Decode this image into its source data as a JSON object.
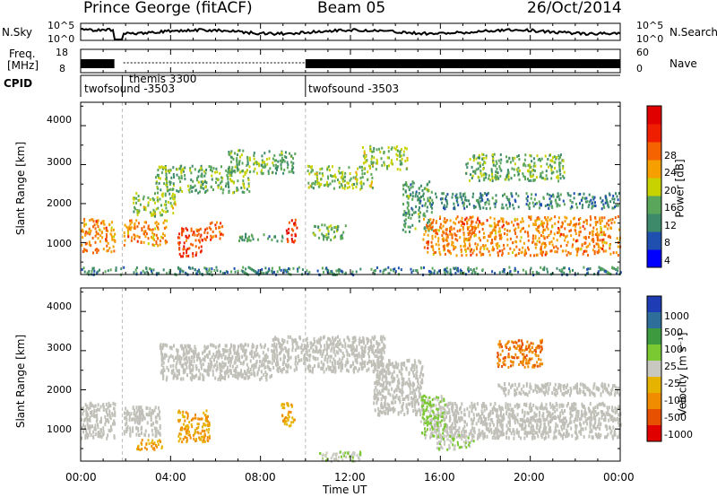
{
  "header": {
    "station": "Prince George (fitACF)",
    "beam": "Beam 05",
    "date": "26/Oct/2014"
  },
  "strip_panels": {
    "nsky": {
      "left_label": "N.Sky",
      "right_label": "N.Search",
      "left_ticks": [
        "10^5",
        "10^0"
      ],
      "right_ticks": [
        "10^5",
        "10^0"
      ]
    },
    "freq": {
      "left_label_1": "Freq.",
      "left_label_2": "[MHz]",
      "right_label": "Nave",
      "left_ticks": [
        "18",
        "8"
      ],
      "right_ticks": [
        "60",
        "0"
      ]
    },
    "cpid": {
      "label": "CPID",
      "segments": [
        {
          "text": "twofsound -3503",
          "start_h": 0.0,
          "end_h": 1.85
        },
        {
          "text": "themis 3300",
          "start_h": 1.85,
          "end_h": 10.0
        },
        {
          "text": "twofsound -3503",
          "start_h": 10.0,
          "end_h": 24.0
        }
      ]
    }
  },
  "power_panel": {
    "ylabel": "Slant Range [km]",
    "yticks": [
      "4000",
      "3000",
      "2000",
      "1000"
    ],
    "colorbar_label": "Power [dB]",
    "colorbar_ticks": [
      "28",
      "24",
      "20",
      "16",
      "12",
      "8",
      "4"
    ]
  },
  "velocity_panel": {
    "ylabel": "Slant Range [km]",
    "yticks": [
      "4000",
      "3000",
      "2000",
      "1000"
    ],
    "colorbar_label": "Velocity [m s⁻¹]",
    "colorbar_ticks": [
      "1000",
      "500",
      "100",
      "25",
      "-25",
      "-100",
      "-500",
      "-1000"
    ]
  },
  "x_axis": {
    "xlabel": "Time UT",
    "xticks": [
      "00:00",
      "04:00",
      "08:00",
      "12:00",
      "16:00",
      "20:00",
      "00:00"
    ]
  },
  "colors": {
    "power_scale": [
      "#0000ff",
      "#1f4faf",
      "#3d8a6a",
      "#5aa65a",
      "#c8d200",
      "#f5a000",
      "#f56200",
      "#f01e00",
      "#e00000"
    ],
    "velocity_scale": [
      "#1e3cb4",
      "#2d6e9a",
      "#3e9a3e",
      "#7ac832",
      "#c8c8c0",
      "#e6b400",
      "#f08c00",
      "#e65000",
      "#e00000"
    ],
    "ground_scatter": "#c0c0b8"
  },
  "chart_data": [
    {
      "type": "heatmap",
      "title": "Prince George (fitACF)  Beam 05  26/Oct/2014",
      "quantity": "Power [dB]",
      "xlabel": "Time UT",
      "ylabel": "Slant Range [km]",
      "xlim_hours": [
        0,
        24
      ],
      "ylim_km": [
        180,
        4600
      ],
      "color_range_db": [
        0,
        32
      ],
      "regions": [
        {
          "t0": 0.0,
          "t1": 1.5,
          "r0": 750,
          "r1": 1650,
          "level_db": 22
        },
        {
          "t0": 1.9,
          "t1": 3.8,
          "r0": 950,
          "r1": 1600,
          "level_db": 22
        },
        {
          "t0": 2.3,
          "t1": 4.2,
          "r0": 1700,
          "r1": 2300,
          "level_db": 14
        },
        {
          "t0": 3.3,
          "t1": 7.5,
          "r0": 2300,
          "r1": 3000,
          "level_db": 12
        },
        {
          "t0": 4.3,
          "t1": 5.6,
          "r0": 650,
          "r1": 1400,
          "level_db": 26
        },
        {
          "t0": 5.6,
          "t1": 6.3,
          "r0": 1100,
          "r1": 1550,
          "level_db": 24
        },
        {
          "t0": 6.5,
          "t1": 9.5,
          "r0": 2800,
          "r1": 3400,
          "level_db": 12
        },
        {
          "t0": 9.1,
          "t1": 9.6,
          "r0": 1000,
          "r1": 1650,
          "level_db": 28
        },
        {
          "t0": 7.0,
          "t1": 9.0,
          "r0": 1050,
          "r1": 1250,
          "level_db": 10
        },
        {
          "t0": 10.3,
          "t1": 11.8,
          "r0": 1100,
          "r1": 1500,
          "level_db": 12
        },
        {
          "t0": 10.0,
          "t1": 13.0,
          "r0": 2400,
          "r1": 3000,
          "level_db": 14
        },
        {
          "t0": 12.5,
          "t1": 14.5,
          "r0": 2900,
          "r1": 3500,
          "level_db": 14
        },
        {
          "t0": 14.3,
          "t1": 15.6,
          "r0": 1300,
          "r1": 2600,
          "level_db": 10
        },
        {
          "t0": 15.2,
          "t1": 24.0,
          "r0": 700,
          "r1": 1700,
          "level_db": 22
        },
        {
          "t0": 15.5,
          "t1": 24.0,
          "r0": 1900,
          "r1": 2300,
          "level_db": 8
        },
        {
          "t0": 17.0,
          "t1": 21.5,
          "r0": 2600,
          "r1": 3300,
          "level_db": 12
        },
        {
          "t0": 0.0,
          "t1": 24.0,
          "r0": 200,
          "r1": 400,
          "level_db": 8
        }
      ]
    },
    {
      "type": "heatmap",
      "quantity": "Velocity [m s⁻¹]",
      "xlabel": "Time UT",
      "ylabel": "Slant Range [km]",
      "xlim_hours": [
        0,
        24
      ],
      "ylim_km": [
        180,
        4600
      ],
      "color_range_ms": [
        -1000,
        1000
      ],
      "ground_scatter_regions": [
        {
          "t0": 0.0,
          "t1": 1.5,
          "r0": 800,
          "r1": 1700
        },
        {
          "t0": 1.9,
          "t1": 3.5,
          "r0": 850,
          "r1": 1600
        },
        {
          "t0": 3.5,
          "t1": 8.5,
          "r0": 2300,
          "r1": 3200
        },
        {
          "t0": 8.5,
          "t1": 13.5,
          "r0": 2500,
          "r1": 3400
        },
        {
          "t0": 13.0,
          "t1": 15.2,
          "r0": 1400,
          "r1": 2800
        },
        {
          "t0": 15.5,
          "t1": 24.0,
          "r0": 800,
          "r1": 1700
        },
        {
          "t0": 18.5,
          "t1": 24.0,
          "r0": 1900,
          "r1": 2200
        }
      ],
      "regions": [
        {
          "t0": 4.3,
          "t1": 5.7,
          "r0": 700,
          "r1": 1500,
          "velocity_ms": -400
        },
        {
          "t0": 2.4,
          "t1": 3.6,
          "r0": 500,
          "r1": 750,
          "velocity_ms": -400
        },
        {
          "t0": 8.9,
          "t1": 9.5,
          "r0": 1100,
          "r1": 1700,
          "velocity_ms": -300
        },
        {
          "t0": 15.1,
          "t1": 16.2,
          "r0": 800,
          "r1": 1900,
          "velocity_ms": 200
        },
        {
          "t0": 15.8,
          "t1": 17.5,
          "r0": 500,
          "r1": 900,
          "velocity_ms": 60
        },
        {
          "t0": 18.5,
          "t1": 20.5,
          "r0": 2600,
          "r1": 3300,
          "velocity_ms": -600
        },
        {
          "t0": 10.5,
          "t1": 12.5,
          "r0": 200,
          "r1": 450,
          "velocity_ms": 60
        }
      ]
    }
  ]
}
